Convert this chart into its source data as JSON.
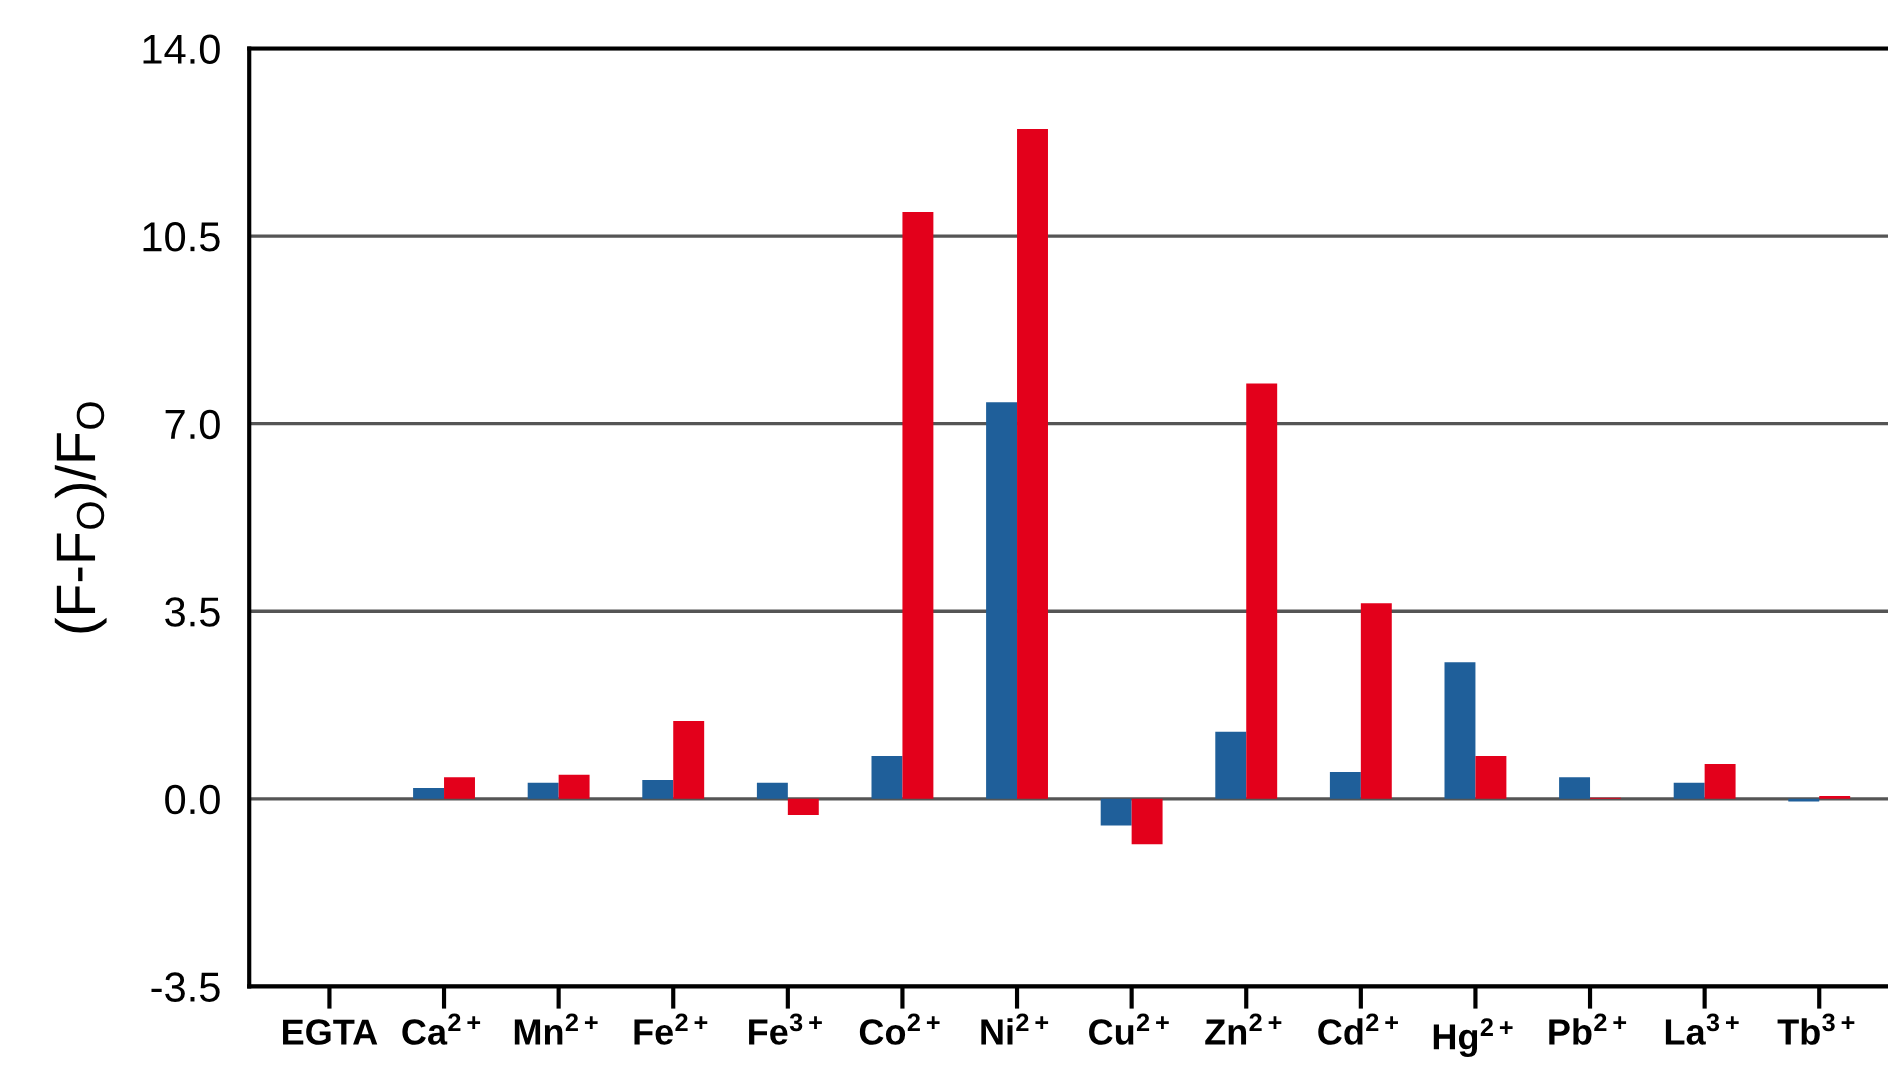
{
  "chart_data": {
    "type": "bar",
    "ylabel": "(F-F$_{O}$)/F$_{O}$",
    "categories": [
      "EGTA",
      "Ca$^{2+}$",
      "Mn$^{2+}$",
      "Fe$^{2+}$",
      "Fe$^{3+}$",
      "Co$^{2+}$",
      "Ni$^{2+}$",
      "Cu$^{2+}$",
      "Zn$^{2+}$",
      "Cd$^{2+}$",
      "Hg$^{2+}$",
      "Pb$^{2+}$",
      "La$^{3+}$",
      "Tb$^{3+}$"
    ],
    "series": [
      {
        "color": "#1f5f9a",
        "values": [
          0,
          0.2,
          0.3,
          0.35,
          0.3,
          0.8,
          7.4,
          -0.5,
          1.25,
          0.5,
          2.55,
          0.4,
          0.3,
          -0.05
        ]
      },
      {
        "color": "#e3001b",
        "values": [
          0,
          0.4,
          0.45,
          1.45,
          -0.3,
          10.95,
          12.5,
          -0.85,
          7.75,
          3.65,
          0.8,
          0.02,
          0.65,
          0.05
        ]
      }
    ],
    "ylim": [
      -3.5,
      14
    ],
    "yticks": [
      {
        "value": -3.5,
        "label": "-3.5"
      },
      {
        "value": 0,
        "label": "0.0"
      },
      {
        "value": 3.5,
        "label": "3.5"
      },
      {
        "value": 7,
        "label": "7.0"
      },
      {
        "value": 10.5,
        "label": "10.5"
      },
      {
        "value": 14,
        "label": "14.0"
      }
    ],
    "grid": "y",
    "legend": false
  }
}
